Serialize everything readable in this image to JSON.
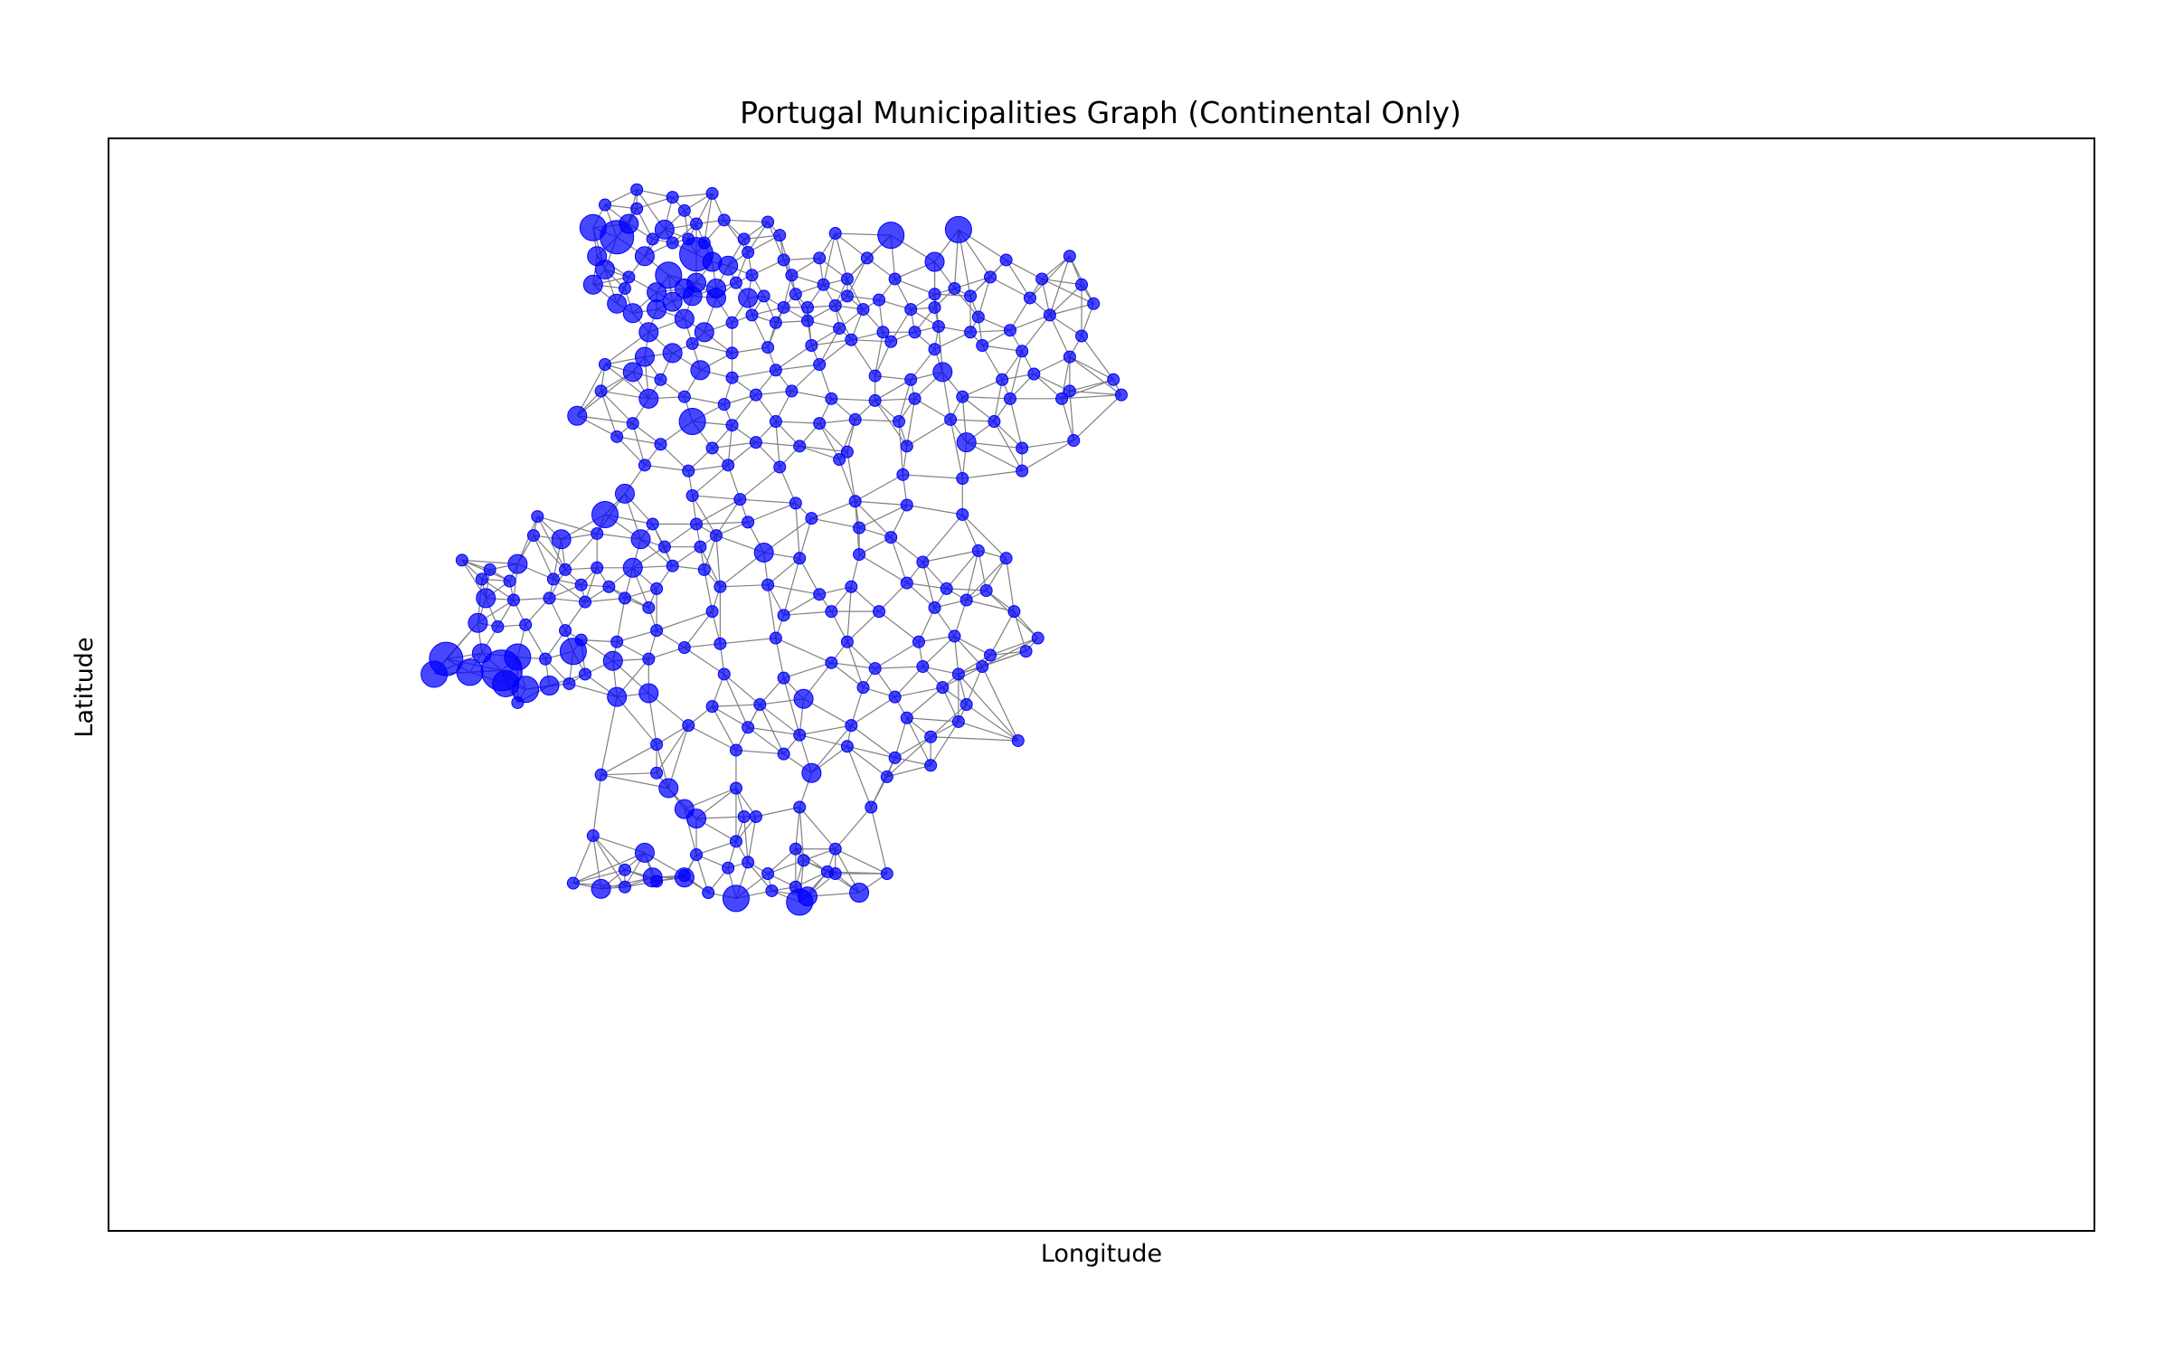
{
  "chart_data": {
    "type": "scatter",
    "subtype": "network-graph",
    "title": "Portugal Municipalities Graph (Continental Only)",
    "xlabel": "Longitude",
    "ylabel": "Latitude",
    "xlim": [
      -9.75,
      -4.75
    ],
    "ylim": [
      36.6,
      42.35
    ],
    "ticks_visible": false,
    "grid": false,
    "colors": {
      "node": "#0000ff",
      "edge": "#808080",
      "frame": "#000000"
    },
    "nodes": [
      [
        -8.42,
        42.08,
        1
      ],
      [
        -8.33,
        42.04,
        1
      ],
      [
        -8.23,
        42.06,
        1
      ],
      [
        -8.5,
        42.0,
        1
      ],
      [
        -8.42,
        41.98,
        1
      ],
      [
        -8.3,
        41.97,
        1
      ],
      [
        -8.53,
        41.88,
        3
      ],
      [
        -8.44,
        41.9,
        2
      ],
      [
        -8.35,
        41.87,
        2
      ],
      [
        -8.27,
        41.9,
        1
      ],
      [
        -8.2,
        41.92,
        1
      ],
      [
        -8.09,
        41.91,
        1
      ],
      [
        -8.47,
        41.83,
        4
      ],
      [
        -8.38,
        41.82,
        1
      ],
      [
        -8.33,
        41.8,
        1
      ],
      [
        -8.29,
        41.82,
        1
      ],
      [
        -8.25,
        41.8,
        1
      ],
      [
        -8.15,
        41.82,
        1
      ],
      [
        -8.06,
        41.84,
        1
      ],
      [
        -7.92,
        41.85,
        1
      ],
      [
        -7.78,
        41.84,
        3
      ],
      [
        -7.61,
        41.87,
        3
      ],
      [
        -8.52,
        41.73,
        2
      ],
      [
        -8.4,
        41.73,
        2
      ],
      [
        -8.27,
        41.74,
        4
      ],
      [
        -8.23,
        41.7,
        2
      ],
      [
        -8.14,
        41.75,
        1
      ],
      [
        -8.05,
        41.71,
        1
      ],
      [
        -7.96,
        41.72,
        1
      ],
      [
        -7.84,
        41.72,
        1
      ],
      [
        -7.67,
        41.7,
        2
      ],
      [
        -7.49,
        41.71,
        1
      ],
      [
        -7.33,
        41.73,
        1
      ],
      [
        -8.5,
        41.66,
        2
      ],
      [
        -8.44,
        41.62,
        1
      ],
      [
        -8.34,
        41.63,
        3
      ],
      [
        -8.3,
        41.56,
        2
      ],
      [
        -8.19,
        41.68,
        2
      ],
      [
        -8.13,
        41.63,
        1
      ],
      [
        -8.03,
        41.63,
        1
      ],
      [
        -7.89,
        41.61,
        1
      ],
      [
        -7.77,
        41.61,
        1
      ],
      [
        -7.62,
        41.56,
        1
      ],
      [
        -7.53,
        41.62,
        1
      ],
      [
        -7.4,
        41.61,
        1
      ],
      [
        -7.3,
        41.58,
        1
      ],
      [
        -8.53,
        41.58,
        2
      ],
      [
        -8.45,
        41.56,
        1
      ],
      [
        -8.37,
        41.54,
        2
      ],
      [
        -8.27,
        41.59,
        2
      ],
      [
        -8.22,
        41.56,
        2
      ],
      [
        -8.17,
        41.59,
        1
      ],
      [
        -8.1,
        41.52,
        1
      ],
      [
        -8.02,
        41.53,
        1
      ],
      [
        -7.95,
        41.58,
        1
      ],
      [
        -7.89,
        41.52,
        1
      ],
      [
        -7.81,
        41.5,
        1
      ],
      [
        -7.67,
        41.53,
        1
      ],
      [
        -7.58,
        41.52,
        1
      ],
      [
        -7.43,
        41.51,
        1
      ],
      [
        -7.27,
        41.48,
        1
      ],
      [
        -8.47,
        41.48,
        2
      ],
      [
        -8.43,
        41.43,
        2
      ],
      [
        -8.37,
        41.45,
        2
      ],
      [
        -8.33,
        41.49,
        2
      ],
      [
        -8.28,
        41.52,
        2
      ],
      [
        -8.22,
        41.51,
        2
      ],
      [
        -8.14,
        41.51,
        2
      ],
      [
        -8.05,
        41.46,
        1
      ],
      [
        -7.99,
        41.46,
        1
      ],
      [
        -7.92,
        41.47,
        1
      ],
      [
        -7.85,
        41.45,
        1
      ],
      [
        -7.73,
        41.45,
        1
      ],
      [
        -7.67,
        41.46,
        1
      ],
      [
        -7.56,
        41.41,
        1
      ],
      [
        -7.38,
        41.42,
        1
      ],
      [
        -8.39,
        41.33,
        2
      ],
      [
        -8.3,
        41.4,
        2
      ],
      [
        -8.25,
        41.33,
        2
      ],
      [
        -8.18,
        41.38,
        1
      ],
      [
        -8.13,
        41.42,
        1
      ],
      [
        -8.07,
        41.38,
        1
      ],
      [
        -7.99,
        41.39,
        1
      ],
      [
        -7.91,
        41.35,
        1
      ],
      [
        -7.8,
        41.33,
        1
      ],
      [
        -7.72,
        41.33,
        1
      ],
      [
        -7.66,
        41.36,
        1
      ],
      [
        -7.58,
        41.33,
        1
      ],
      [
        -7.48,
        41.34,
        1
      ],
      [
        -7.3,
        41.31,
        1
      ],
      [
        -8.4,
        41.2,
        2
      ],
      [
        -8.33,
        41.22,
        2
      ],
      [
        -8.28,
        41.27,
        1
      ],
      [
        -8.18,
        41.22,
        1
      ],
      [
        -8.09,
        41.25,
        1
      ],
      [
        -7.98,
        41.26,
        1
      ],
      [
        -7.88,
        41.29,
        1
      ],
      [
        -7.78,
        41.28,
        1
      ],
      [
        -7.67,
        41.24,
        1
      ],
      [
        -7.55,
        41.26,
        1
      ],
      [
        -7.45,
        41.23,
        1
      ],
      [
        -7.33,
        41.2,
        1
      ],
      [
        -8.5,
        41.16,
        1
      ],
      [
        -8.43,
        41.12,
        2
      ],
      [
        -8.36,
        41.08,
        1
      ],
      [
        -8.26,
        41.13,
        2
      ],
      [
        -8.18,
        41.09,
        1
      ],
      [
        -8.07,
        41.13,
        1
      ],
      [
        -7.96,
        41.16,
        1
      ],
      [
        -7.82,
        41.1,
        1
      ],
      [
        -7.73,
        41.08,
        1
      ],
      [
        -7.65,
        41.12,
        2
      ],
      [
        -7.5,
        41.08,
        1
      ],
      [
        -7.42,
        41.11,
        1
      ],
      [
        -7.33,
        41.02,
        1
      ],
      [
        -7.22,
        41.08,
        1
      ],
      [
        -8.51,
        41.02,
        1
      ],
      [
        -8.39,
        40.98,
        2
      ],
      [
        -8.3,
        40.99,
        1
      ],
      [
        -8.2,
        40.95,
        1
      ],
      [
        -8.12,
        41.0,
        1
      ],
      [
        -8.03,
        41.02,
        1
      ],
      [
        -7.93,
        40.98,
        1
      ],
      [
        -7.82,
        40.97,
        1
      ],
      [
        -7.72,
        40.98,
        1
      ],
      [
        -7.6,
        40.99,
        1
      ],
      [
        -7.48,
        40.98,
        1
      ],
      [
        -7.35,
        40.98,
        1
      ],
      [
        -7.2,
        41.0,
        1
      ],
      [
        -8.57,
        40.89,
        2
      ],
      [
        -8.43,
        40.85,
        1
      ],
      [
        -8.28,
        40.86,
        3
      ],
      [
        -8.18,
        40.84,
        1
      ],
      [
        -8.07,
        40.86,
        1
      ],
      [
        -7.96,
        40.85,
        1
      ],
      [
        -7.87,
        40.87,
        1
      ],
      [
        -7.76,
        40.86,
        1
      ],
      [
        -7.63,
        40.87,
        1
      ],
      [
        -7.52,
        40.86,
        1
      ],
      [
        -8.47,
        40.78,
        1
      ],
      [
        -8.36,
        40.74,
        1
      ],
      [
        -8.23,
        40.72,
        1
      ],
      [
        -8.12,
        40.75,
        1
      ],
      [
        -8.01,
        40.73,
        1
      ],
      [
        -7.89,
        40.7,
        1
      ],
      [
        -7.74,
        40.73,
        1
      ],
      [
        -7.59,
        40.75,
        2
      ],
      [
        -7.45,
        40.72,
        1
      ],
      [
        -7.32,
        40.76,
        1
      ],
      [
        -8.4,
        40.63,
        1
      ],
      [
        -8.29,
        40.6,
        1
      ],
      [
        -8.19,
        40.63,
        1
      ],
      [
        -8.06,
        40.62,
        1
      ],
      [
        -7.91,
        40.66,
        1
      ],
      [
        -7.75,
        40.58,
        1
      ],
      [
        -7.6,
        40.56,
        1
      ],
      [
        -7.45,
        40.6,
        1
      ],
      [
        -8.45,
        40.48,
        2
      ],
      [
        -8.28,
        40.47,
        1
      ],
      [
        -8.16,
        40.45,
        1
      ],
      [
        -8.02,
        40.43,
        1
      ],
      [
        -7.87,
        40.44,
        1
      ],
      [
        -7.74,
        40.42,
        1
      ],
      [
        -7.6,
        40.37,
        1
      ],
      [
        -8.67,
        40.36,
        1
      ],
      [
        -8.5,
        40.37,
        3
      ],
      [
        -8.38,
        40.32,
        1
      ],
      [
        -8.27,
        40.32,
        1
      ],
      [
        -8.14,
        40.33,
        1
      ],
      [
        -7.98,
        40.35,
        1
      ],
      [
        -7.86,
        40.3,
        1
      ],
      [
        -7.78,
        40.25,
        1
      ],
      [
        -8.68,
        40.26,
        1
      ],
      [
        -8.61,
        40.24,
        2
      ],
      [
        -8.52,
        40.27,
        1
      ],
      [
        -8.41,
        40.24,
        2
      ],
      [
        -8.35,
        40.2,
        1
      ],
      [
        -8.26,
        40.2,
        1
      ],
      [
        -8.22,
        40.26,
        1
      ],
      [
        -8.1,
        40.17,
        2
      ],
      [
        -8.01,
        40.14,
        1
      ],
      [
        -7.86,
        40.16,
        1
      ],
      [
        -7.7,
        40.12,
        1
      ],
      [
        -7.56,
        40.18,
        1
      ],
      [
        -7.49,
        40.14,
        1
      ],
      [
        -8.86,
        40.13,
        1
      ],
      [
        -8.79,
        40.08,
        1
      ],
      [
        -8.72,
        40.11,
        2
      ],
      [
        -8.6,
        40.08,
        1
      ],
      [
        -8.52,
        40.09,
        1
      ],
      [
        -8.43,
        40.09,
        2
      ],
      [
        -8.33,
        40.1,
        1
      ],
      [
        -8.25,
        40.08,
        1
      ],
      [
        -8.81,
        40.03,
        1
      ],
      [
        -8.74,
        40.02,
        1
      ],
      [
        -8.63,
        40.03,
        1
      ],
      [
        -8.56,
        40.0,
        1
      ],
      [
        -8.49,
        39.99,
        1
      ],
      [
        -8.37,
        39.98,
        1
      ],
      [
        -8.21,
        39.99,
        1
      ],
      [
        -8.09,
        40.0,
        1
      ],
      [
        -7.96,
        39.95,
        1
      ],
      [
        -7.88,
        39.99,
        1
      ],
      [
        -7.74,
        40.01,
        1
      ],
      [
        -7.64,
        39.98,
        1
      ],
      [
        -7.54,
        39.97,
        1
      ],
      [
        -8.8,
        39.93,
        2
      ],
      [
        -8.73,
        39.92,
        1
      ],
      [
        -8.64,
        39.93,
        1
      ],
      [
        -8.55,
        39.91,
        1
      ],
      [
        -8.45,
        39.93,
        1
      ],
      [
        -8.39,
        39.88,
        1
      ],
      [
        -8.23,
        39.86,
        1
      ],
      [
        -8.05,
        39.84,
        1
      ],
      [
        -7.93,
        39.86,
        1
      ],
      [
        -7.81,
        39.86,
        1
      ],
      [
        -7.67,
        39.88,
        1
      ],
      [
        -7.59,
        39.92,
        1
      ],
      [
        -7.47,
        39.86,
        1
      ],
      [
        -8.82,
        39.8,
        2
      ],
      [
        -8.77,
        39.78,
        1
      ],
      [
        -8.7,
        39.79,
        1
      ],
      [
        -8.6,
        39.76,
        1
      ],
      [
        -8.56,
        39.71,
        1
      ],
      [
        -8.47,
        39.7,
        1
      ],
      [
        -8.37,
        39.76,
        1
      ],
      [
        -8.21,
        39.69,
        1
      ],
      [
        -8.07,
        39.72,
        1
      ],
      [
        -7.89,
        39.7,
        1
      ],
      [
        -7.71,
        39.7,
        1
      ],
      [
        -7.62,
        39.73,
        1
      ],
      [
        -7.53,
        39.63,
        1
      ],
      [
        -7.44,
        39.65,
        1
      ],
      [
        -7.41,
        39.72,
        1
      ],
      [
        -8.9,
        39.61,
        4
      ],
      [
        -8.81,
        39.64,
        2
      ],
      [
        -8.72,
        39.62,
        3
      ],
      [
        -8.65,
        39.61,
        1
      ],
      [
        -8.58,
        39.65,
        3
      ],
      [
        -8.48,
        39.6,
        2
      ],
      [
        -8.39,
        39.61,
        1
      ],
      [
        -8.3,
        39.67,
        1
      ],
      [
        -8.2,
        39.53,
        1
      ],
      [
        -8.05,
        39.51,
        1
      ],
      [
        -7.93,
        39.59,
        1
      ],
      [
        -7.82,
        39.56,
        1
      ],
      [
        -7.7,
        39.57,
        1
      ],
      [
        -7.61,
        39.53,
        1
      ],
      [
        -7.55,
        39.57,
        1
      ],
      [
        -8.93,
        39.53,
        3
      ],
      [
        -8.84,
        39.54,
        3
      ],
      [
        -8.76,
        39.55,
        5
      ],
      [
        -8.75,
        39.48,
        3
      ],
      [
        -8.7,
        39.45,
        3
      ],
      [
        -8.64,
        39.47,
        2
      ],
      [
        -8.59,
        39.48,
        1
      ],
      [
        -8.55,
        39.53,
        1
      ],
      [
        -8.39,
        39.43,
        2
      ],
      [
        -8.23,
        39.36,
        1
      ],
      [
        -8.11,
        39.37,
        1
      ],
      [
        -8.0,
        39.4,
        2
      ],
      [
        -7.85,
        39.46,
        1
      ],
      [
        -7.77,
        39.41,
        1
      ],
      [
        -7.65,
        39.46,
        1
      ],
      [
        -7.59,
        39.37,
        1
      ],
      [
        -8.72,
        39.38,
        1
      ],
      [
        -8.47,
        39.41,
        2
      ],
      [
        -8.29,
        39.26,
        1
      ],
      [
        -8.14,
        39.25,
        1
      ],
      [
        -8.01,
        39.21,
        1
      ],
      [
        -7.88,
        39.26,
        1
      ],
      [
        -7.68,
        39.2,
        1
      ],
      [
        -7.61,
        39.28,
        1
      ],
      [
        -7.46,
        39.18,
        1
      ],
      [
        -8.37,
        39.16,
        1
      ],
      [
        -8.17,
        39.13,
        1
      ],
      [
        -8.05,
        39.11,
        1
      ],
      [
        -7.89,
        39.15,
        1
      ],
      [
        -7.77,
        39.09,
        1
      ],
      [
        -7.68,
        39.05,
        1
      ],
      [
        -8.51,
        39.0,
        1
      ],
      [
        -8.37,
        39.01,
        1
      ],
      [
        -8.17,
        38.93,
        1
      ],
      [
        -7.98,
        39.01,
        2
      ],
      [
        -7.79,
        38.99,
        1
      ],
      [
        -8.3,
        38.82,
        2
      ],
      [
        -8.15,
        38.78,
        1
      ],
      [
        -8.01,
        38.83,
        1
      ],
      [
        -7.83,
        38.83,
        1
      ],
      [
        -8.17,
        38.65,
        1
      ],
      [
        -8.02,
        38.61,
        1
      ],
      [
        -7.92,
        38.61,
        1
      ],
      [
        -8.53,
        38.68,
        1
      ],
      [
        -8.4,
        38.59,
        2
      ],
      [
        -8.27,
        38.58,
        1
      ],
      [
        -8.14,
        38.54,
        1
      ],
      [
        -8.45,
        38.5,
        1
      ],
      [
        -8.38,
        38.46,
        2
      ],
      [
        -8.3,
        38.47,
        1
      ],
      [
        -8.19,
        38.51,
        1
      ],
      [
        -8.09,
        38.48,
        1
      ],
      [
        -8.0,
        38.55,
        1
      ],
      [
        -7.94,
        38.49,
        1
      ],
      [
        -8.58,
        38.43,
        1
      ],
      [
        -8.51,
        38.4,
        2
      ],
      [
        -8.45,
        38.41,
        1
      ],
      [
        -8.37,
        38.44,
        1
      ],
      [
        -8.3,
        38.46,
        2
      ],
      [
        -8.24,
        38.38,
        1
      ],
      [
        -8.17,
        38.35,
        3
      ],
      [
        -8.08,
        38.39,
        1
      ],
      [
        -7.92,
        38.48,
        1
      ],
      [
        -8.01,
        38.33,
        3
      ],
      [
        -7.99,
        38.36,
        2
      ],
      [
        -7.86,
        38.38,
        2
      ],
      [
        -8.02,
        38.41,
        1
      ],
      [
        -7.79,
        38.48,
        1
      ],
      [
        -8.27,
        38.77,
        2
      ],
      [
        -8.34,
        38.93,
        2
      ],
      [
        -8.12,
        38.78,
        1
      ],
      [
        -7.74,
        39.3,
        1
      ]
    ]
  }
}
